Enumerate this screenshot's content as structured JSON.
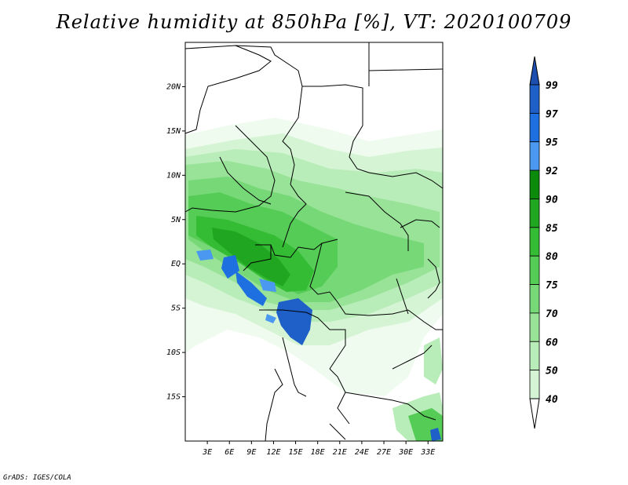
{
  "title": "Relative humidity at 850hPa [%], VT: 2020100709",
  "credit": "GrADS: IGES/COLA",
  "map": {
    "lon_labels": [
      "3E",
      "6E",
      "9E",
      "12E",
      "15E",
      "18E",
      "21E",
      "24E",
      "27E",
      "30E",
      "33E"
    ],
    "lon_values": [
      3,
      6,
      9,
      12,
      15,
      18,
      21,
      24,
      27,
      30,
      33
    ],
    "lat_labels": [
      "20N",
      "15N",
      "10N",
      "5N",
      "EQ",
      "5S",
      "10S",
      "15S"
    ],
    "lat_values": [
      20,
      15,
      10,
      5,
      0,
      -5,
      -10,
      -15
    ],
    "lon_range": [
      0,
      35
    ],
    "lat_range": [
      -20,
      25
    ]
  },
  "colorbar": {
    "levels": [
      "99",
      "97",
      "95",
      "92",
      "90",
      "85",
      "80",
      "75",
      "70",
      "60",
      "50",
      "40"
    ],
    "colors": [
      "#1e5fc8",
      "#1e6fe0",
      "#4a98f0",
      "#0c8a0c",
      "#21a621",
      "#35bc35",
      "#55cc55",
      "#77d877",
      "#98e398",
      "#b8ecb8",
      "#d4f4d4",
      "#eefbee"
    ],
    "top_color": "#1c4fb0"
  }
}
